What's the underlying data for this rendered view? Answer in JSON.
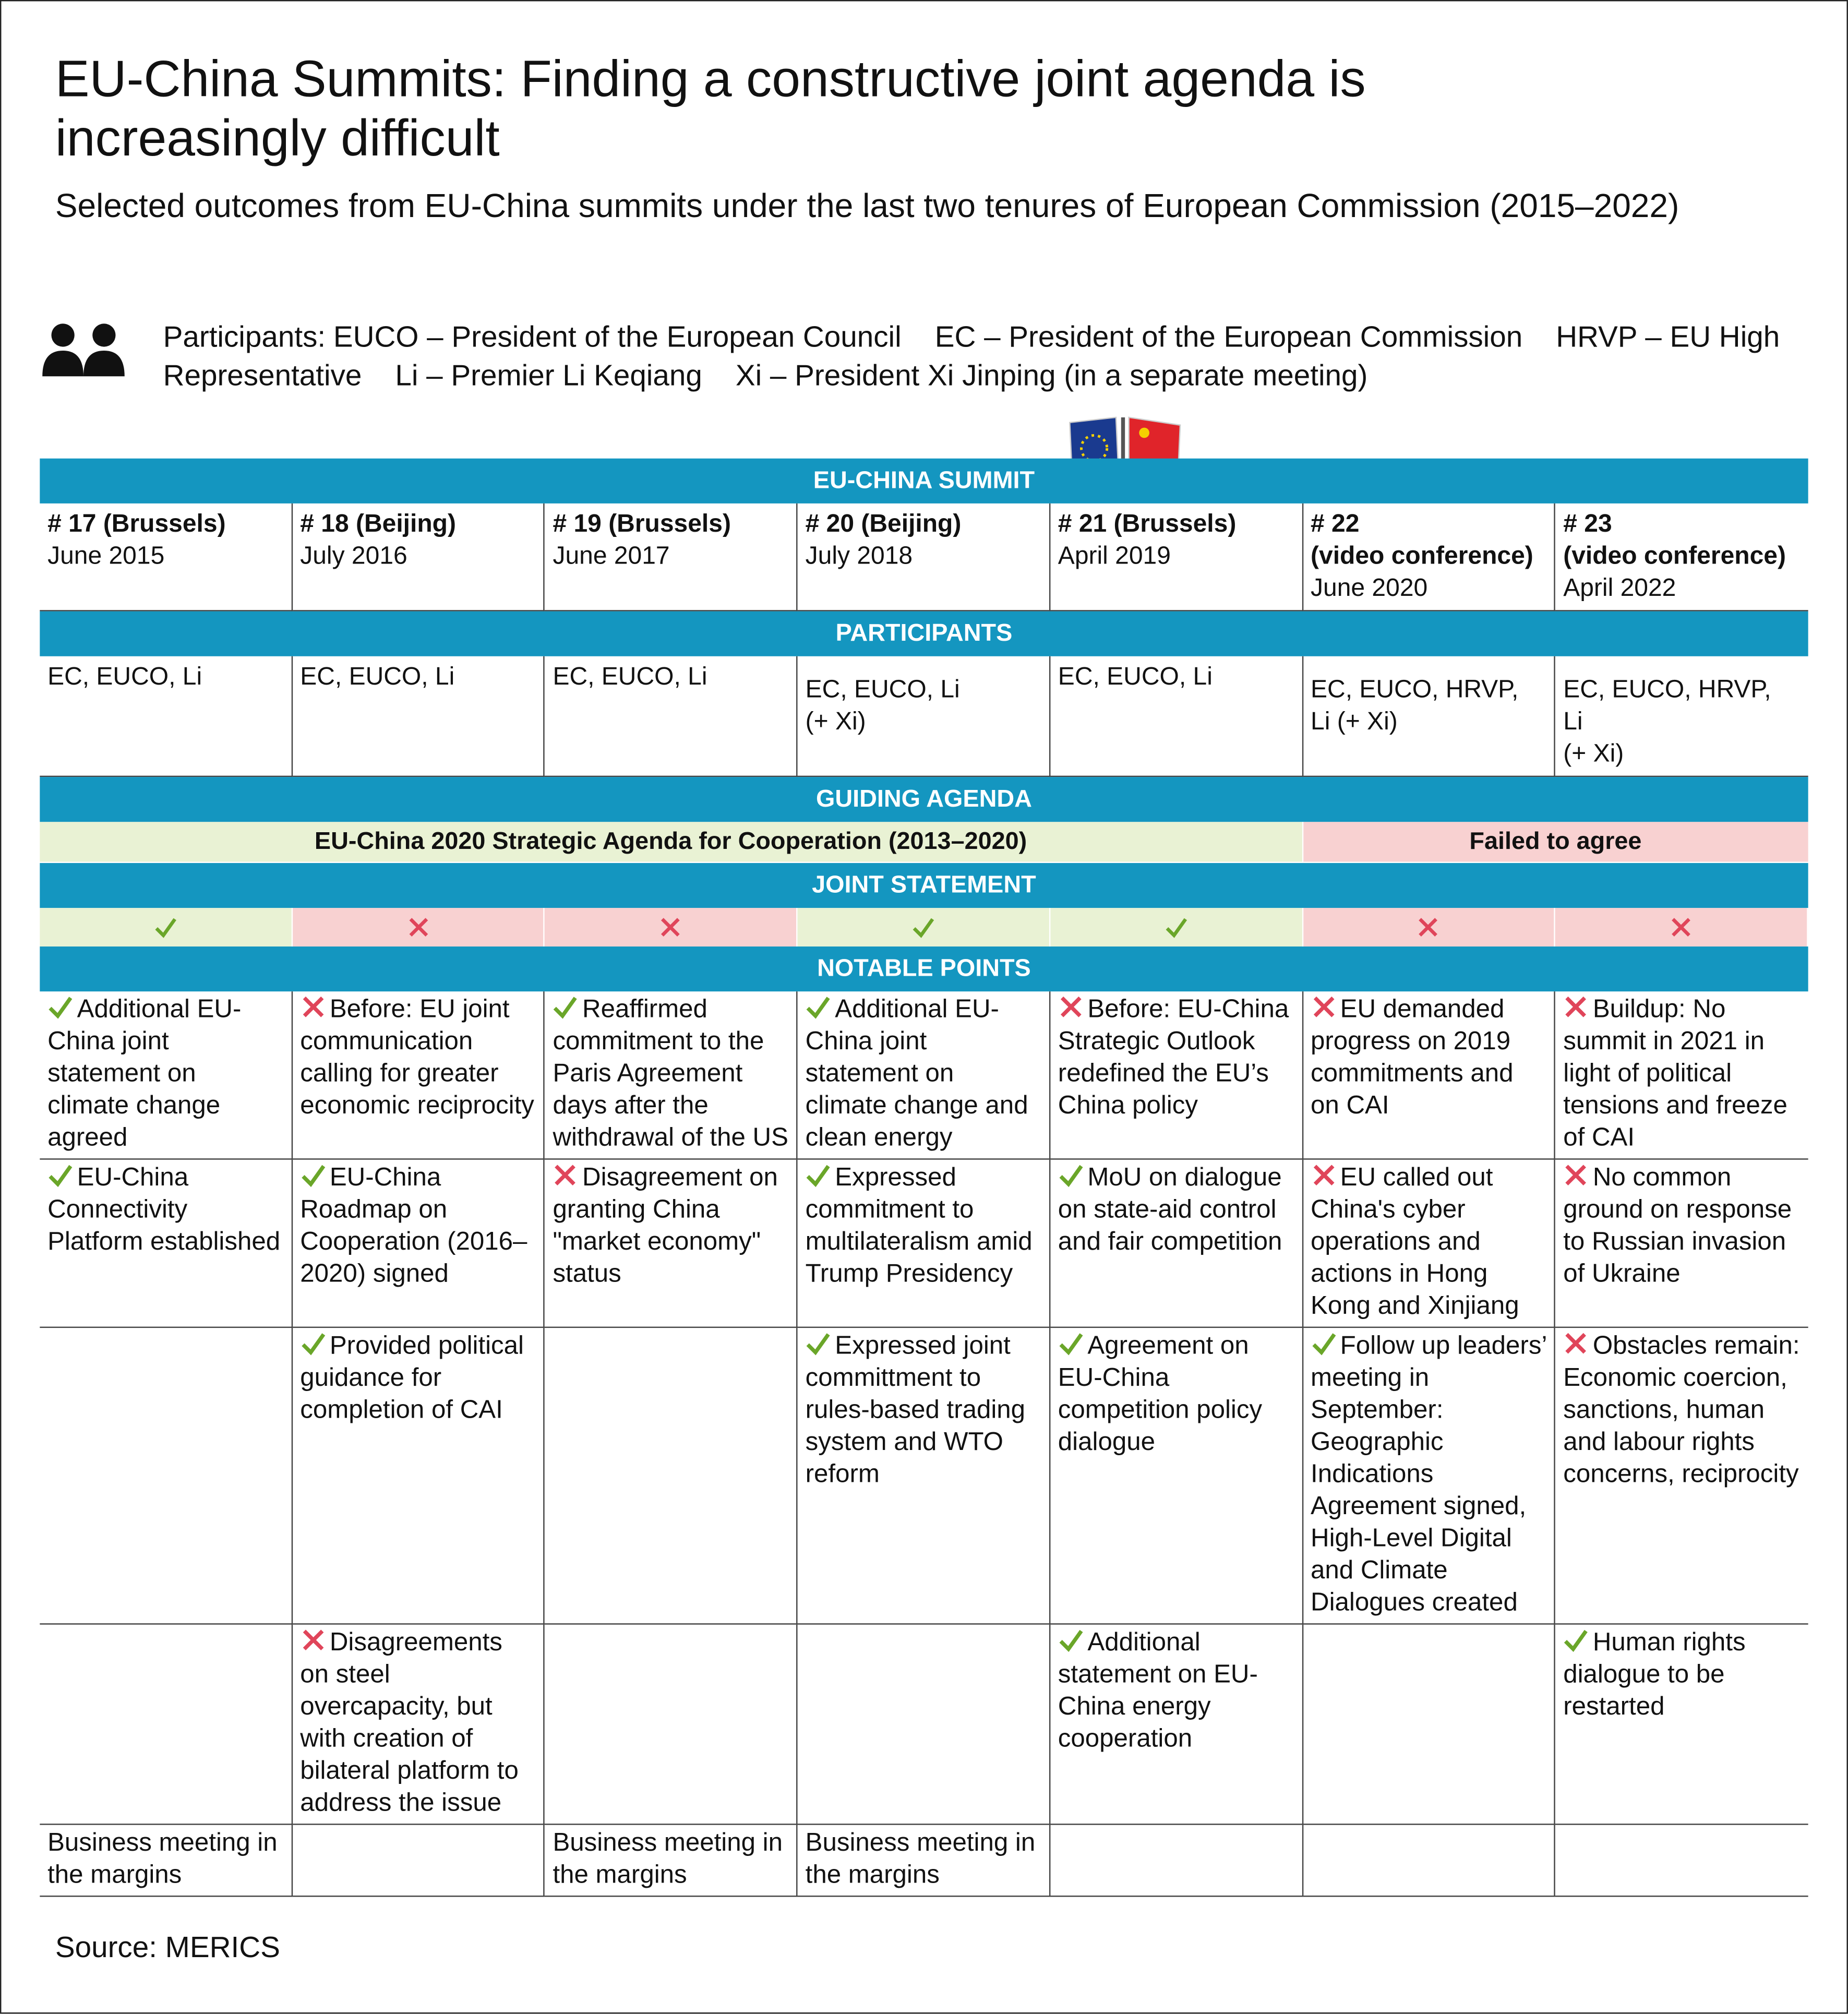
{
  "header": {
    "title": "EU-China Summits: Finding a constructive joint agenda is increasingly difficult",
    "subtitle": "Selected outcomes from EU-China summits under the last two tenures of European Commission (2015–2022)"
  },
  "legend": {
    "label": "Participants:",
    "items": [
      "EUCO – President of the European Council",
      "EC – President of the European Commission",
      "HRVP – EU High Representative",
      "Li – Premier Li Keqiang",
      "Xi – President Xi Jinping (in a separate meeting)"
    ]
  },
  "table": {
    "sections": [
      "EU-CHINA SUMMIT",
      "PARTICIPANTS",
      "GUIDING AGENDA",
      "JOINT STATEMENT",
      "NOTABLE POINTS"
    ],
    "summits": [
      {
        "number": "# 17 (Brussels)",
        "date": "June 2015"
      },
      {
        "number": "# 18 (Beijing)",
        "date": "July 2016"
      },
      {
        "number": "# 19 (Brussels)",
        "date": "June 2017"
      },
      {
        "number": "# 20 (Beijing)",
        "date": "July 2018"
      },
      {
        "number": "# 21 (Brussels)",
        "date": "April 2019"
      },
      {
        "number": "# 22\n(video conference)",
        "date": "June 2020"
      },
      {
        "number": "# 23\n(video conference)",
        "date": "April 2022"
      }
    ],
    "participants": [
      "EC, EUCO, Li",
      "EC, EUCO, Li",
      "EC, EUCO, Li",
      "EC, EUCO, Li\n(+ Xi)",
      "EC, EUCO, Li",
      "EC, EUCO, HRVP,\nLi (+ Xi)",
      "EC, EUCO, HRVP,\nLi\n(+ Xi)"
    ],
    "agenda": [
      {
        "text": "EU-China 2020 Strategic Agenda for Cooperation (2013–2020)",
        "agreed": true
      },
      {
        "text": "Failed to agree",
        "agreed": false
      }
    ],
    "joint_statement": [
      true,
      false,
      false,
      true,
      true,
      false,
      false
    ],
    "notable_points": [
      [
        {
          "positive": true,
          "text": "Additional EU-China joint statement on climate change agreed"
        },
        {
          "positive": false,
          "text": "Before: EU joint communication calling for greater economic reciprocity"
        },
        {
          "positive": true,
          "text": "Reaffirmed commitment to the Paris Agreement days after the withdrawal of the US"
        },
        {
          "positive": true,
          "text": "Additional EU-China joint statement on climate change and clean energy"
        },
        {
          "positive": false,
          "text": "Before: EU-China Strategic Outlook redefined the EU’s China policy"
        },
        {
          "positive": false,
          "text": "EU demanded progress on 2019 commitments and on CAI"
        },
        {
          "positive": false,
          "text": "Buildup: No summit in 2021 in light of political tensions and freeze of CAI"
        }
      ],
      [
        {
          "positive": true,
          "text": "EU-China Connectivity Platform established"
        },
        {
          "positive": true,
          "text": "EU-China Roadmap on Cooperation (2016–2020) signed"
        },
        {
          "positive": false,
          "text": "Disagreement on granting China \"market economy\" status"
        },
        {
          "positive": true,
          "text": "Expressed commitment to multilateralism amid Trump Presidency"
        },
        {
          "positive": true,
          "text": "MoU on dialogue on state-aid control and fair competition"
        },
        {
          "positive": false,
          "text": "EU called out China's cyber operations and actions in Hong Kong and Xinjiang"
        },
        {
          "positive": false,
          "text": "No common ground on response to Russian invasion of Ukraine"
        }
      ],
      [
        null,
        {
          "positive": true,
          "text": "Provided political guidance for completion of CAI"
        },
        null,
        {
          "positive": true,
          "text": "Expressed joint committment to rules-based trading system and WTO reform"
        },
        {
          "positive": true,
          "text": "Agreement on EU-China competition policy dialogue"
        },
        {
          "positive": true,
          "text": "Follow up leaders’ meeting in September: Geographic Indications Agreement signed, High-Level Digital and Climate Dialogues created"
        },
        {
          "positive": false,
          "text": "Obstacles remain: Economic coercion, sanctions, human and labour rights concerns, reciprocity"
        }
      ],
      [
        null,
        {
          "positive": false,
          "text": "Disagreements on steel overcapacity, but with creation of bilateral platform to address the issue"
        },
        null,
        null,
        {
          "positive": true,
          "text": "Additional statement on EU-China energy cooperation"
        },
        null,
        {
          "positive": true,
          "text": "Human rights dialogue to be restarted"
        }
      ],
      [
        {
          "text": "Business meeting in the margins"
        },
        null,
        {
          "text": "Business meeting in the margins"
        },
        {
          "text": "Business meeting in the margins"
        },
        null,
        null,
        null
      ]
    ]
  },
  "footer": {
    "source": "Source: MERICS"
  }
}
